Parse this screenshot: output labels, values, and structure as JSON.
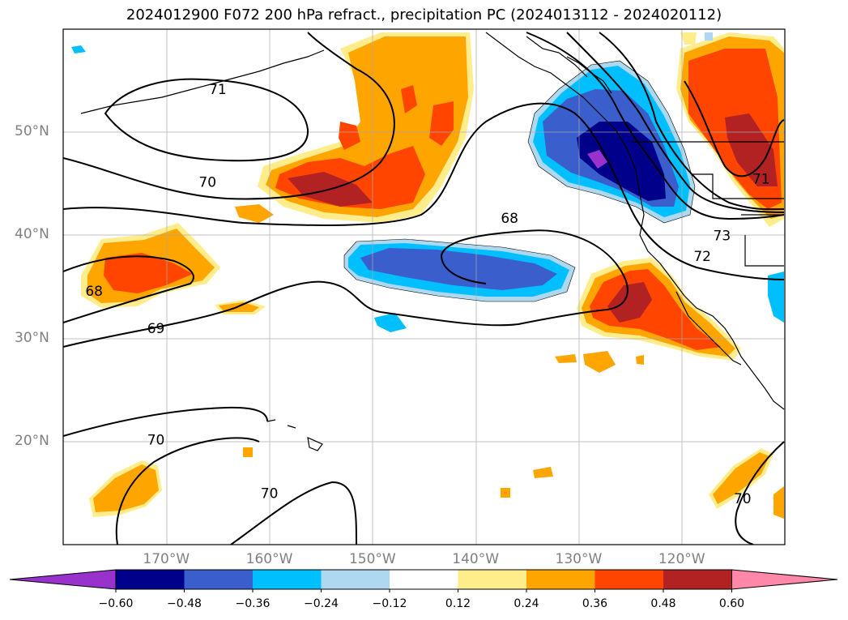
{
  "title": "2024012900 F072 200 hPa refract., precipitation PC (2024013112 - 2024020112)",
  "map": {
    "lon_range": [
      -180,
      -110
    ],
    "lat_range": [
      10,
      60
    ],
    "lon_ticks": [
      {
        "lon": -170,
        "label": "170°W"
      },
      {
        "lon": -160,
        "label": "160°W"
      },
      {
        "lon": -150,
        "label": "150°W"
      },
      {
        "lon": -140,
        "label": "140°W"
      },
      {
        "lon": -130,
        "label": "130°W"
      },
      {
        "lon": -120,
        "label": "120°W"
      }
    ],
    "lat_ticks": [
      {
        "lat": 50,
        "label": "50°N"
      },
      {
        "lat": 40,
        "label": "40°N"
      },
      {
        "lat": 30,
        "label": "30°N"
      },
      {
        "lat": 20,
        "label": "20°N"
      }
    ],
    "grid": true,
    "contour_labels": [
      {
        "text": "71",
        "lon": -165,
        "lat": 54.2
      },
      {
        "text": "70",
        "lon": -166,
        "lat": 45.2
      },
      {
        "text": "68",
        "lon": -177,
        "lat": 34.6
      },
      {
        "text": "69",
        "lon": -171,
        "lat": 31.0
      },
      {
        "text": "70",
        "lon": -171,
        "lat": 20.2
      },
      {
        "text": "70",
        "lon": -160,
        "lat": 15.0
      },
      {
        "text": "68",
        "lon": -136.7,
        "lat": 41.7
      },
      {
        "text": "73",
        "lon": -116.1,
        "lat": 40.0
      },
      {
        "text": "72",
        "lon": -118,
        "lat": 38.0
      },
      {
        "text": "71",
        "lon": -112.3,
        "lat": 45.5
      },
      {
        "text": "70",
        "lon": -114.1,
        "lat": 14.5
      }
    ]
  },
  "colorbar": {
    "colors": [
      "#9932cc",
      "#00008b",
      "#3a5fcd",
      "#00bfff",
      "#add8f0",
      "#ffffff",
      "#ffec8b",
      "#ffa500",
      "#ff4500",
      "#b22222",
      "#ff88aa"
    ],
    "tick_labels": [
      "−0.60",
      "−0.48",
      "−0.36",
      "−0.24",
      "−0.12",
      "0.12",
      "0.24",
      "0.36",
      "0.48",
      "0.60"
    ]
  }
}
